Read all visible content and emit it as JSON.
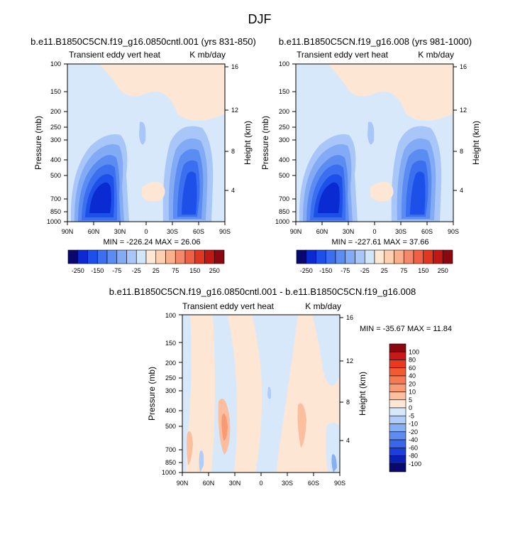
{
  "figure_title": "DJF",
  "chart_data": [
    {
      "type": "heatmap",
      "title": "b.e11.B1850C5CN.f19_g16.0850cntl.001 (yrs 831-850)",
      "left_subtitle": "Transient eddy vert heat",
      "right_subtitle": "K mb/day",
      "ylabel": "Pressure (mb)",
      "y2label": "Height (km)",
      "x_ticks": [
        "90N",
        "60N",
        "30N",
        "0",
        "30S",
        "60S",
        "90S"
      ],
      "y_ticks": [
        "100",
        "150",
        "200",
        "250",
        "300",
        "400",
        "500",
        "700",
        "850",
        "1000"
      ],
      "y_values": [
        100,
        150,
        200,
        250,
        300,
        400,
        500,
        700,
        850,
        1000
      ],
      "y2_ticks": [
        "4",
        "8",
        "12",
        "16"
      ],
      "ylim": [
        1000,
        100
      ],
      "stats": "MIN = -226.24  MAX = 26.06",
      "min": -226.24,
      "max": 26.06,
      "colorbar": {
        "labels": [
          "-250",
          "-150",
          "-75",
          "-25",
          "25",
          "75",
          "150",
          "250"
        ],
        "levels": [
          -250,
          -200,
          -150,
          -100,
          -75,
          -50,
          -25,
          -10,
          10,
          25,
          50,
          75,
          100,
          150,
          200,
          250
        ],
        "colors": [
          "#08086e",
          "#0a2ad2",
          "#1c50e8",
          "#3c6ef0",
          "#5a8cf2",
          "#82aaf5",
          "#a8c6f8",
          "#d2e6fa",
          "#fde8d6",
          "#fcd0b0",
          "#f9b08c",
          "#f58868",
          "#ef6044",
          "#e03820",
          "#c01812",
          "#8c0810"
        ]
      }
    },
    {
      "type": "heatmap",
      "title": "b.e11.B1850C5CN.f19_g16.008 (yrs 981-1000)",
      "left_subtitle": "Transient eddy vert heat",
      "right_subtitle": "K mb/day",
      "ylabel": "Pressure (mb)",
      "y2label": "Height (km)",
      "x_ticks": [
        "90N",
        "60N",
        "30N",
        "0",
        "30S",
        "60S",
        "90S"
      ],
      "y_ticks": [
        "100",
        "150",
        "200",
        "250",
        "300",
        "400",
        "500",
        "700",
        "850",
        "1000"
      ],
      "y_values": [
        100,
        150,
        200,
        250,
        300,
        400,
        500,
        700,
        850,
        1000
      ],
      "y2_ticks": [
        "4",
        "8",
        "12",
        "16"
      ],
      "ylim": [
        1000,
        100
      ],
      "stats": "MIN = -227.61  MAX = 37.66",
      "min": -227.61,
      "max": 37.66,
      "colorbar": {
        "labels": [
          "-250",
          "-150",
          "-75",
          "-25",
          "25",
          "75",
          "150",
          "250"
        ],
        "levels": [
          -250,
          -200,
          -150,
          -100,
          -75,
          -50,
          -25,
          -10,
          10,
          25,
          50,
          75,
          100,
          150,
          200,
          250
        ],
        "colors": [
          "#08086e",
          "#0a2ad2",
          "#1c50e8",
          "#3c6ef0",
          "#5a8cf2",
          "#82aaf5",
          "#a8c6f8",
          "#d2e6fa",
          "#fde8d6",
          "#fcd0b0",
          "#f9b08c",
          "#f58868",
          "#ef6044",
          "#e03820",
          "#c01812",
          "#8c0810"
        ]
      }
    },
    {
      "type": "heatmap",
      "title": "b.e11.B1850C5CN.f19_g16.0850cntl.001 - b.e11.B1850C5CN.f19_g16.008",
      "left_subtitle": "Transient eddy vert heat",
      "right_subtitle": "K mb/day",
      "ylabel": "Pressure (mb)",
      "y2label": "Height (km)",
      "x_ticks": [
        "90N",
        "60N",
        "30N",
        "0",
        "30S",
        "60S",
        "90S"
      ],
      "y_ticks": [
        "100",
        "150",
        "200",
        "250",
        "300",
        "400",
        "500",
        "700",
        "850",
        "1000"
      ],
      "y_values": [
        100,
        150,
        200,
        250,
        300,
        400,
        500,
        700,
        850,
        1000
      ],
      "y2_ticks": [
        "4",
        "8",
        "12",
        "16"
      ],
      "ylim": [
        1000,
        100
      ],
      "stats": "MIN = -35.67  MAX = 11.84",
      "min": -35.67,
      "max": 11.84,
      "colorbar": {
        "labels": [
          "100",
          "80",
          "60",
          "40",
          "20",
          "10",
          "5",
          "0",
          "-5",
          "-10",
          "-20",
          "-40",
          "-60",
          "-80",
          "-100"
        ],
        "colors": [
          "#8c0810",
          "#c81818",
          "#e83a1e",
          "#f25a32",
          "#f57a52",
          "#f89a74",
          "#fbbe9e",
          "#fde6d4",
          "#d8e8fb",
          "#b0ccf7",
          "#88aef3",
          "#5e8cef",
          "#3a66e8",
          "#1a40d8",
          "#0a20b0",
          "#08086e"
        ]
      }
    }
  ]
}
